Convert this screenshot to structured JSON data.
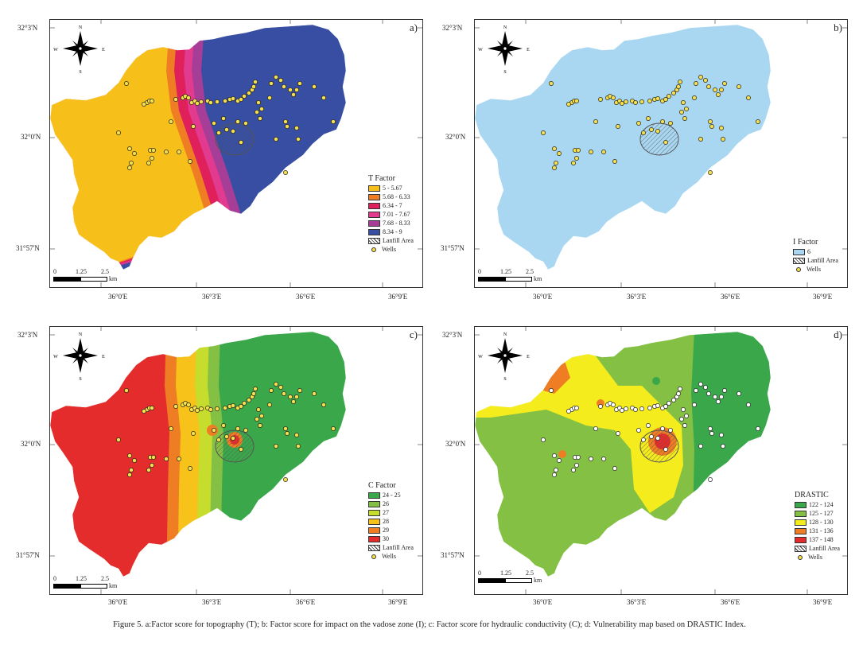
{
  "caption": "Figure 5. a:Factor score for topography (T); b: Factor score for impact on the vadose zone (I); c: Factor score for hydraulic conductivity (C); d: Vulnerability map based on DRASTIC Index.",
  "latitude_labels": [
    "32°3'N",
    "32°0'N",
    "31°57'N"
  ],
  "longitude_labels": [
    "36°0'E",
    "36°3'E",
    "36°6'E",
    "36°9'E"
  ],
  "north_arrow": {
    "n": "N",
    "s": "S",
    "e": "E",
    "w": "W"
  },
  "scale_bar": {
    "ticks": [
      "0",
      "1.25",
      "2.5"
    ],
    "unit": "km"
  },
  "panels": [
    {
      "label": "a)",
      "legend_title": "T Factor",
      "classes": [
        {
          "label": "5 - 5.67",
          "color": "#f7bf1a"
        },
        {
          "label": "5.68 - 6.33",
          "color": "#ee7d24"
        },
        {
          "label": "6.34 - 7",
          "color": "#e0205a"
        },
        {
          "label": "7.01 - 7.67",
          "color": "#e23a8f"
        },
        {
          "label": "7.68 - 8.33",
          "color": "#a63d96"
        },
        {
          "label": "8.34 - 9",
          "color": "#374ea2"
        }
      ],
      "landfill_label": "Lanfill Area",
      "wells_label": "Wells"
    },
    {
      "label": "b)",
      "legend_title": "I Factor",
      "classes": [
        {
          "label": "6",
          "color": "#a9d7f2"
        }
      ],
      "landfill_label": "Lanfill Area",
      "wells_label": "Wells"
    },
    {
      "label": "c)",
      "legend_title": "C Factor",
      "classes": [
        {
          "label": "24 - 25",
          "color": "#3aa84a"
        },
        {
          "label": "26",
          "color": "#84c043"
        },
        {
          "label": "27",
          "color": "#c7dd2e"
        },
        {
          "label": "28",
          "color": "#f7c21a"
        },
        {
          "label": "29",
          "color": "#ee7d24"
        },
        {
          "label": "30",
          "color": "#e42c2c"
        }
      ],
      "landfill_label": "Lanfill Area",
      "wells_label": "Wells"
    },
    {
      "label": "d)",
      "legend_title": "DRASTIC",
      "classes": [
        {
          "label": "122 - 124",
          "color": "#3aa84a"
        },
        {
          "label": "125 - 127",
          "color": "#84c043"
        },
        {
          "label": "128 - 130",
          "color": "#f5ec1e"
        },
        {
          "label": "131 - 136",
          "color": "#ee7d24"
        },
        {
          "label": "137 - 148",
          "color": "#e42c2c"
        }
      ],
      "landfill_label": "Lanfill Area",
      "wells_label": "Wells"
    }
  ]
}
